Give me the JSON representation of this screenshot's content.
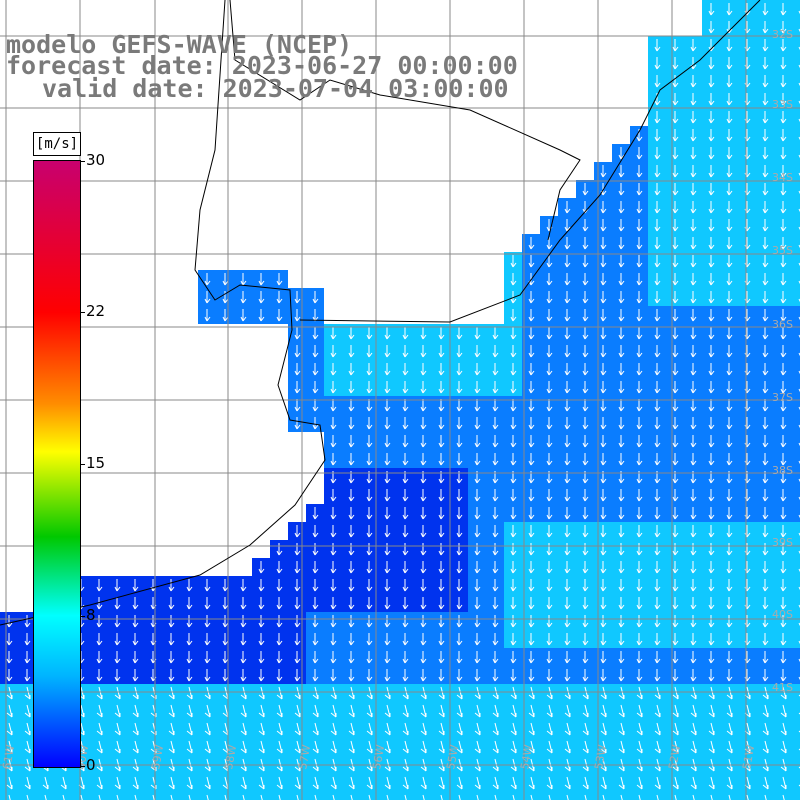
{
  "title": {
    "line1": "modelo GEFS-WAVE (NCEP)",
    "line2": "forecast date: 2023-06-27 00:00:00",
    "line3": "valid date: 2023-07-04 03:00:00"
  },
  "legend": {
    "unit": "[m/s]",
    "ticks": [
      "30",
      "22",
      "15",
      "8",
      "0"
    ]
  },
  "map": {
    "lat_labels_right": [
      "32S",
      "33S",
      "34S",
      "35S",
      "36S",
      "37S",
      "38S",
      "39S",
      "40S",
      "41S"
    ],
    "lon_labels_bottom": [
      "61W",
      "60W",
      "59W",
      "58W",
      "57W",
      "56W",
      "55W",
      "54W",
      "53W",
      "52W",
      "51W"
    ],
    "colors": {
      "land": "#ffffff",
      "deep": "#0033ee",
      "mid": "#0a7dff",
      "light": "#10c8ff",
      "grid": "#888888"
    }
  }
}
